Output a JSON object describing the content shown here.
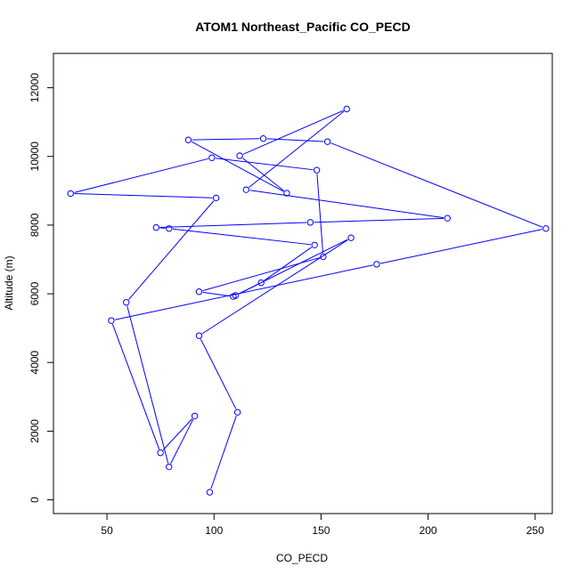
{
  "chart_data": {
    "type": "line",
    "title": "ATOM1 Northeast_Pacific CO_PECD",
    "xlabel": "CO_PECD",
    "ylabel": "Altitude (m)",
    "xlim": [
      25,
      258
    ],
    "ylim": [
      -400,
      13000
    ],
    "x_ticks": [
      50,
      100,
      150,
      200,
      250
    ],
    "y_ticks": [
      0,
      2000,
      4000,
      6000,
      8000,
      10000,
      12000
    ],
    "x_tick_labels": [
      "50",
      "100",
      "150",
      "200",
      "250"
    ],
    "y_tick_labels": [
      "0",
      "2000",
      "4000",
      "6000",
      "8000",
      "10000",
      "12000"
    ],
    "grid": false,
    "line_color": "#0000ff",
    "marker": "open-circle",
    "series": [
      {
        "x": [
          98,
          111,
          93,
          164,
          110,
          122,
          147,
          79,
          73,
          145,
          209,
          115,
          162,
          112,
          134,
          88,
          123,
          153,
          255,
          176,
          52,
          75,
          91,
          79,
          59,
          101,
          33,
          99,
          148,
          151,
          93,
          109
        ],
        "y": [
          220,
          2550,
          4780,
          7630,
          5950,
          6320,
          7420,
          7900,
          7930,
          8080,
          8200,
          9030,
          11380,
          10020,
          8930,
          10480,
          10520,
          10430,
          7900,
          6860,
          5220,
          1370,
          2440,
          960,
          5750,
          8790,
          8920,
          9960,
          9600,
          7080,
          6060,
          5920
        ]
      }
    ]
  }
}
